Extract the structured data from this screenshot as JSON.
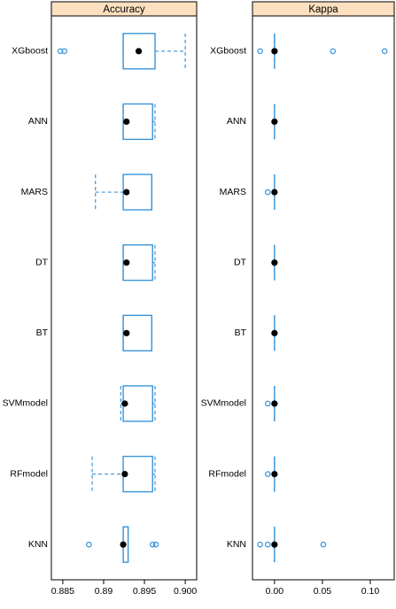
{
  "chart_data": [
    {
      "type": "box",
      "title": "Accuracy",
      "categories": [
        "XGboost",
        "ANN",
        "MARS",
        "DT",
        "BT",
        "SVMmodel",
        "RFmodel",
        "KNN"
      ],
      "min": [
        0.8924,
        0.8924,
        0.889,
        0.8924,
        0.8924,
        0.8921,
        0.8886,
        0.8924
      ],
      "q1": [
        0.8924,
        0.8924,
        0.8924,
        0.8924,
        0.8924,
        0.8924,
        0.8924,
        0.8924
      ],
      "median": [
        0.8943,
        0.8928,
        0.8928,
        0.8928,
        0.8928,
        0.8926,
        0.8926,
        0.8924
      ],
      "q3": [
        0.8963,
        0.896,
        0.8959,
        0.896,
        0.8959,
        0.896,
        0.896,
        0.893
      ],
      "max": [
        0.9,
        0.8963,
        0.8959,
        0.8963,
        0.8959,
        0.8963,
        0.8963,
        0.893
      ],
      "outliers": [
        [
          0.8847,
          0.8852
        ],
        [],
        [],
        [],
        [],
        [],
        [],
        [
          0.8882,
          0.896,
          0.8964
        ]
      ],
      "color": "#3a94d8",
      "xlim": [
        0.8836,
        0.9014
      ],
      "xticks": [
        0.885,
        0.89,
        {
          "value": 0.895,
          "label": "0.895"
        },
        {
          "value": 0.9,
          "label": "0.900"
        }
      ]
    },
    {
      "type": "box",
      "title": "Kappa",
      "categories": [
        "XGboost",
        "ANN",
        "MARS",
        "DT",
        "BT",
        "SVMmodel",
        "RFmodel",
        "KNN"
      ],
      "min": [
        0,
        0,
        0,
        0,
        0,
        0,
        0,
        0
      ],
      "q1": [
        0,
        0,
        0,
        0,
        0,
        0,
        0,
        0
      ],
      "median": [
        0,
        0,
        0,
        0,
        0,
        0,
        0,
        0
      ],
      "q3": [
        0,
        0,
        0,
        0,
        0,
        0,
        0,
        0
      ],
      "max": [
        0,
        0,
        0,
        0,
        0,
        0,
        0,
        0
      ],
      "outliers": [
        [
          -0.015,
          0.061,
          0.115
        ],
        [],
        [
          -0.007
        ],
        [],
        [],
        [
          -0.007
        ],
        [
          -0.007
        ],
        [
          -0.015,
          -0.007,
          0.051
        ]
      ],
      "color": "#3a94d8",
      "xlim": [
        -0.023,
        0.125
      ],
      "xticks": [
        {
          "value": 0,
          "label": "0.00"
        },
        0.05,
        {
          "value": 0.1,
          "label": "0.10"
        }
      ]
    }
  ]
}
